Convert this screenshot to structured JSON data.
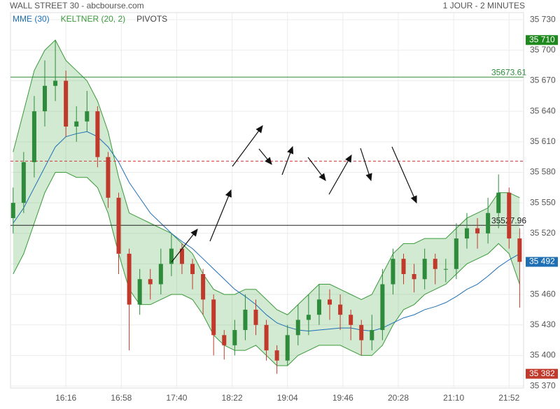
{
  "chart_data": {
    "type": "candlestick",
    "title": "WALL STREET 30 - abcbourse.com",
    "subtitle": "1 JOUR - 2 MINUTES",
    "legend": [
      {
        "name": "MME (30)",
        "color": "#1f6fb5"
      },
      {
        "name": "KELTNER (20, 2)",
        "color": "#3a9a3a"
      },
      {
        "name": "PIVOTS",
        "color": "#444444"
      }
    ],
    "x": [
      936,
      944,
      952,
      960,
      968,
      976,
      984,
      992,
      1000,
      1008,
      1016,
      1024,
      1032,
      1040,
      1048,
      1056,
      1064,
      1072,
      1080,
      1088,
      1096,
      1104,
      1112,
      1120,
      1128,
      1136,
      1144,
      1152,
      1160,
      1168,
      1176,
      1184,
      1192,
      1200,
      1208,
      1216,
      1224,
      1232,
      1240,
      1248,
      1256,
      1264,
      1272,
      1280,
      1288,
      1296,
      1304,
      1312,
      1320
    ],
    "open": [
      35535,
      35550,
      35590,
      35640,
      35665,
      35670,
      35625,
      35630,
      35640,
      35595,
      35555,
      35500,
      35450,
      35475,
      35470,
      35490,
      35505,
      35490,
      35480,
      35455,
      35420,
      35410,
      35425,
      35445,
      35430,
      35405,
      35395,
      35420,
      35435,
      35440,
      35455,
      35450,
      35440,
      35430,
      35415,
      35425,
      35470,
      35495,
      35480,
      35475,
      35495,
      35485,
      35485,
      35515,
      35525,
      35520,
      35540,
      35560,
      35515
    ],
    "high": [
      35565,
      35600,
      35655,
      35690,
      35710,
      35680,
      35645,
      35660,
      35645,
      35600,
      35560,
      35505,
      35485,
      35485,
      35505,
      35520,
      35510,
      35495,
      35485,
      35460,
      35425,
      35435,
      35460,
      35455,
      35435,
      35410,
      35430,
      35450,
      35460,
      35470,
      35465,
      35460,
      35445,
      35435,
      35440,
      35485,
      35505,
      35500,
      35490,
      35505,
      35500,
      35495,
      35530,
      35540,
      35535,
      35555,
      35578,
      35565,
      35525
    ],
    "low": [
      35520,
      35540,
      35575,
      35625,
      35650,
      35615,
      35610,
      35620,
      35585,
      35545,
      35480,
      35405,
      35440,
      35455,
      35460,
      35478,
      35480,
      35465,
      35440,
      35400,
      35396,
      35400,
      35415,
      35420,
      35395,
      35382,
      35390,
      35410,
      35420,
      35430,
      35435,
      35425,
      35415,
      35400,
      35405,
      35415,
      35460,
      35470,
      35462,
      35465,
      35470,
      35472,
      35475,
      35505,
      35505,
      35510,
      35525,
      35505,
      35447
    ],
    "close": [
      35550,
      35590,
      35640,
      35665,
      35670,
      35625,
      35630,
      35640,
      35595,
      35555,
      35500,
      35450,
      35475,
      35470,
      35490,
      35505,
      35490,
      35480,
      35455,
      35420,
      35410,
      35425,
      35445,
      35430,
      35405,
      35395,
      35420,
      35435,
      35440,
      35455,
      35450,
      35440,
      35430,
      35415,
      35425,
      35470,
      35495,
      35480,
      35475,
      35495,
      35485,
      35485,
      35515,
      35525,
      35520,
      35540,
      35560,
      35515,
      35492
    ],
    "up_color": "#2e8b3c",
    "down_color": "#c0392b",
    "mme": [
      35530,
      35545,
      35565,
      35585,
      35605,
      35615,
      35618,
      35620,
      35615,
      35605,
      35590,
      35570,
      35555,
      35540,
      35530,
      35520,
      35512,
      35505,
      35495,
      35485,
      35475,
      35465,
      35458,
      35450,
      35440,
      35432,
      35428,
      35425,
      35424,
      35425,
      35426,
      35427,
      35427,
      35425,
      35424,
      35427,
      35432,
      35437,
      35440,
      35445,
      35448,
      35452,
      35458,
      35465,
      35470,
      35478,
      35487,
      35494,
      35500
    ],
    "keltner_upper": [
      35600,
      35640,
      35680,
      35700,
      35710,
      35690,
      35680,
      35670,
      35650,
      35620,
      35575,
      35540,
      35535,
      35530,
      35525,
      35520,
      35510,
      35500,
      35480,
      35465,
      35460,
      35460,
      35465,
      35465,
      35455,
      35445,
      35440,
      35450,
      35460,
      35470,
      35470,
      35465,
      35460,
      35455,
      35460,
      35480,
      35500,
      35510,
      35510,
      35515,
      35515,
      35515,
      35525,
      35535,
      35540,
      35545,
      35560,
      35560,
      35555
    ],
    "keltner_lower": [
      35480,
      35500,
      35530,
      35560,
      35580,
      35580,
      35575,
      35575,
      35565,
      35540,
      35500,
      35465,
      35450,
      35450,
      35455,
      35460,
      35460,
      35455,
      35440,
      35420,
      35410,
      35405,
      35405,
      35410,
      35400,
      35390,
      35390,
      35400,
      35405,
      35410,
      35410,
      35410,
      35405,
      35400,
      35400,
      35410,
      35430,
      35445,
      35450,
      35460,
      35465,
      35470,
      35480,
      35490,
      35495,
      35500,
      35510,
      35500,
      35470
    ],
    "pivots": [
      {
        "value": 35673.61,
        "color": "#2e8b3c",
        "dashed": false,
        "show_label": true
      },
      {
        "value": 35591,
        "color": "#d33c3c",
        "dashed": true,
        "show_label": false
      },
      {
        "value": 35527.96,
        "color": "#222222",
        "dashed": false,
        "show_label": true
      }
    ],
    "price_badges": [
      {
        "value": 35710,
        "label": "35 710",
        "color": "#1e8a1e"
      },
      {
        "value": 35492,
        "label": "35 492",
        "color": "#1f6fb5"
      },
      {
        "value": 35382,
        "label": "35 382",
        "color": "#c0392b"
      }
    ],
    "xlim": [
      934,
      1323
    ],
    "ylim": [
      35368,
      35737
    ],
    "xticks": [
      {
        "value": 976,
        "label": "16:16"
      },
      {
        "value": 1018,
        "label": "16:58"
      },
      {
        "value": 1060,
        "label": "17:40"
      },
      {
        "value": 1102,
        "label": "18:22"
      },
      {
        "value": 1144,
        "label": "19:04"
      },
      {
        "value": 1186,
        "label": "19:46"
      },
      {
        "value": 1228,
        "label": "20:28"
      },
      {
        "value": 1270,
        "label": "21:10"
      },
      {
        "value": 1312,
        "label": "21:52"
      }
    ],
    "yticks": [
      {
        "value": 35370,
        "label": "35 370"
      },
      {
        "value": 35400,
        "label": "35 400"
      },
      {
        "value": 35430,
        "label": "35 430"
      },
      {
        "value": 35460,
        "label": "35 460"
      },
      {
        "value": 35490,
        "label": "35 490"
      },
      {
        "value": 35520,
        "label": "35 520"
      },
      {
        "value": 35550,
        "label": "35 550"
      },
      {
        "value": 35580,
        "label": "35 580"
      },
      {
        "value": 35610,
        "label": "35 610"
      },
      {
        "value": 35640,
        "label": "35 640"
      },
      {
        "value": 35670,
        "label": "35 670"
      },
      {
        "value": 35700,
        "label": "35 700"
      },
      {
        "value": 35730,
        "label": "35 730"
      }
    ],
    "grid": true
  }
}
